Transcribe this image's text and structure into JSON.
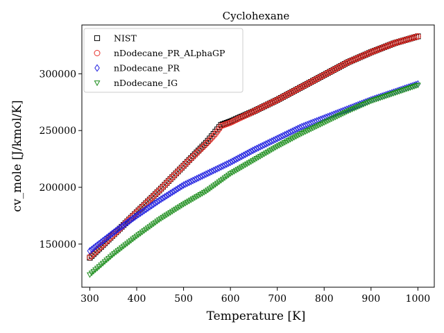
{
  "chart_data": {
    "type": "scatter",
    "title": "Cyclohexane",
    "xlabel": "Temperature [K]",
    "ylabel": "cv_mole [J/kmol/K]",
    "xlim": [
      283,
      1035
    ],
    "ylim": [
      112000,
      343000
    ],
    "xticks": [
      300,
      400,
      500,
      600,
      700,
      800,
      900,
      1000
    ],
    "yticks": [
      150000,
      200000,
      250000,
      300000
    ],
    "grid": false,
    "legend": "top-left",
    "series": [
      {
        "name": "NIST",
        "marker": "square",
        "color": "#000000",
        "x": [
          300,
          350,
          400,
          450,
          500,
          550,
          570,
          580,
          600,
          650,
          700,
          750,
          800,
          850,
          900,
          950,
          1000
        ],
        "y": [
          138000,
          158000,
          178000,
          198000,
          219000,
          240000,
          250000,
          255000,
          258000,
          267000,
          277000,
          288000,
          299000,
          310000,
          319000,
          327000,
          333000
        ]
      },
      {
        "name": "nDodecane_PR_ALphaGP",
        "marker": "circle",
        "color": "#e8302a",
        "x": [
          300,
          350,
          400,
          450,
          500,
          550,
          570,
          580,
          600,
          650,
          700,
          750,
          800,
          850,
          900,
          950,
          1000
        ],
        "y": [
          138500,
          158000,
          178000,
          198000,
          219000,
          239000,
          248000,
          254000,
          257000,
          267000,
          277000,
          288000,
          299000,
          310000,
          319000,
          327000,
          333000
        ]
      },
      {
        "name": "nDodecane_PR",
        "marker": "diamond",
        "color": "#1f1fe0",
        "x": [
          300,
          350,
          400,
          450,
          500,
          550,
          600,
          650,
          700,
          750,
          800,
          850,
          900,
          950,
          1000
        ],
        "y": [
          144000,
          160000,
          175000,
          189000,
          202000,
          212000,
          222000,
          233000,
          243000,
          253000,
          261000,
          269000,
          277000,
          284000,
          291000
        ]
      },
      {
        "name": "nDodecane_IG",
        "marker": "triangle-down",
        "color": "#1a8c1a",
        "x": [
          300,
          350,
          400,
          450,
          500,
          550,
          600,
          650,
          700,
          750,
          800,
          850,
          900,
          950,
          1000
        ],
        "y": [
          123000,
          141000,
          157000,
          172000,
          185000,
          197000,
          212000,
          224000,
          236000,
          247000,
          257000,
          267000,
          276000,
          283000,
          290000
        ]
      }
    ]
  }
}
